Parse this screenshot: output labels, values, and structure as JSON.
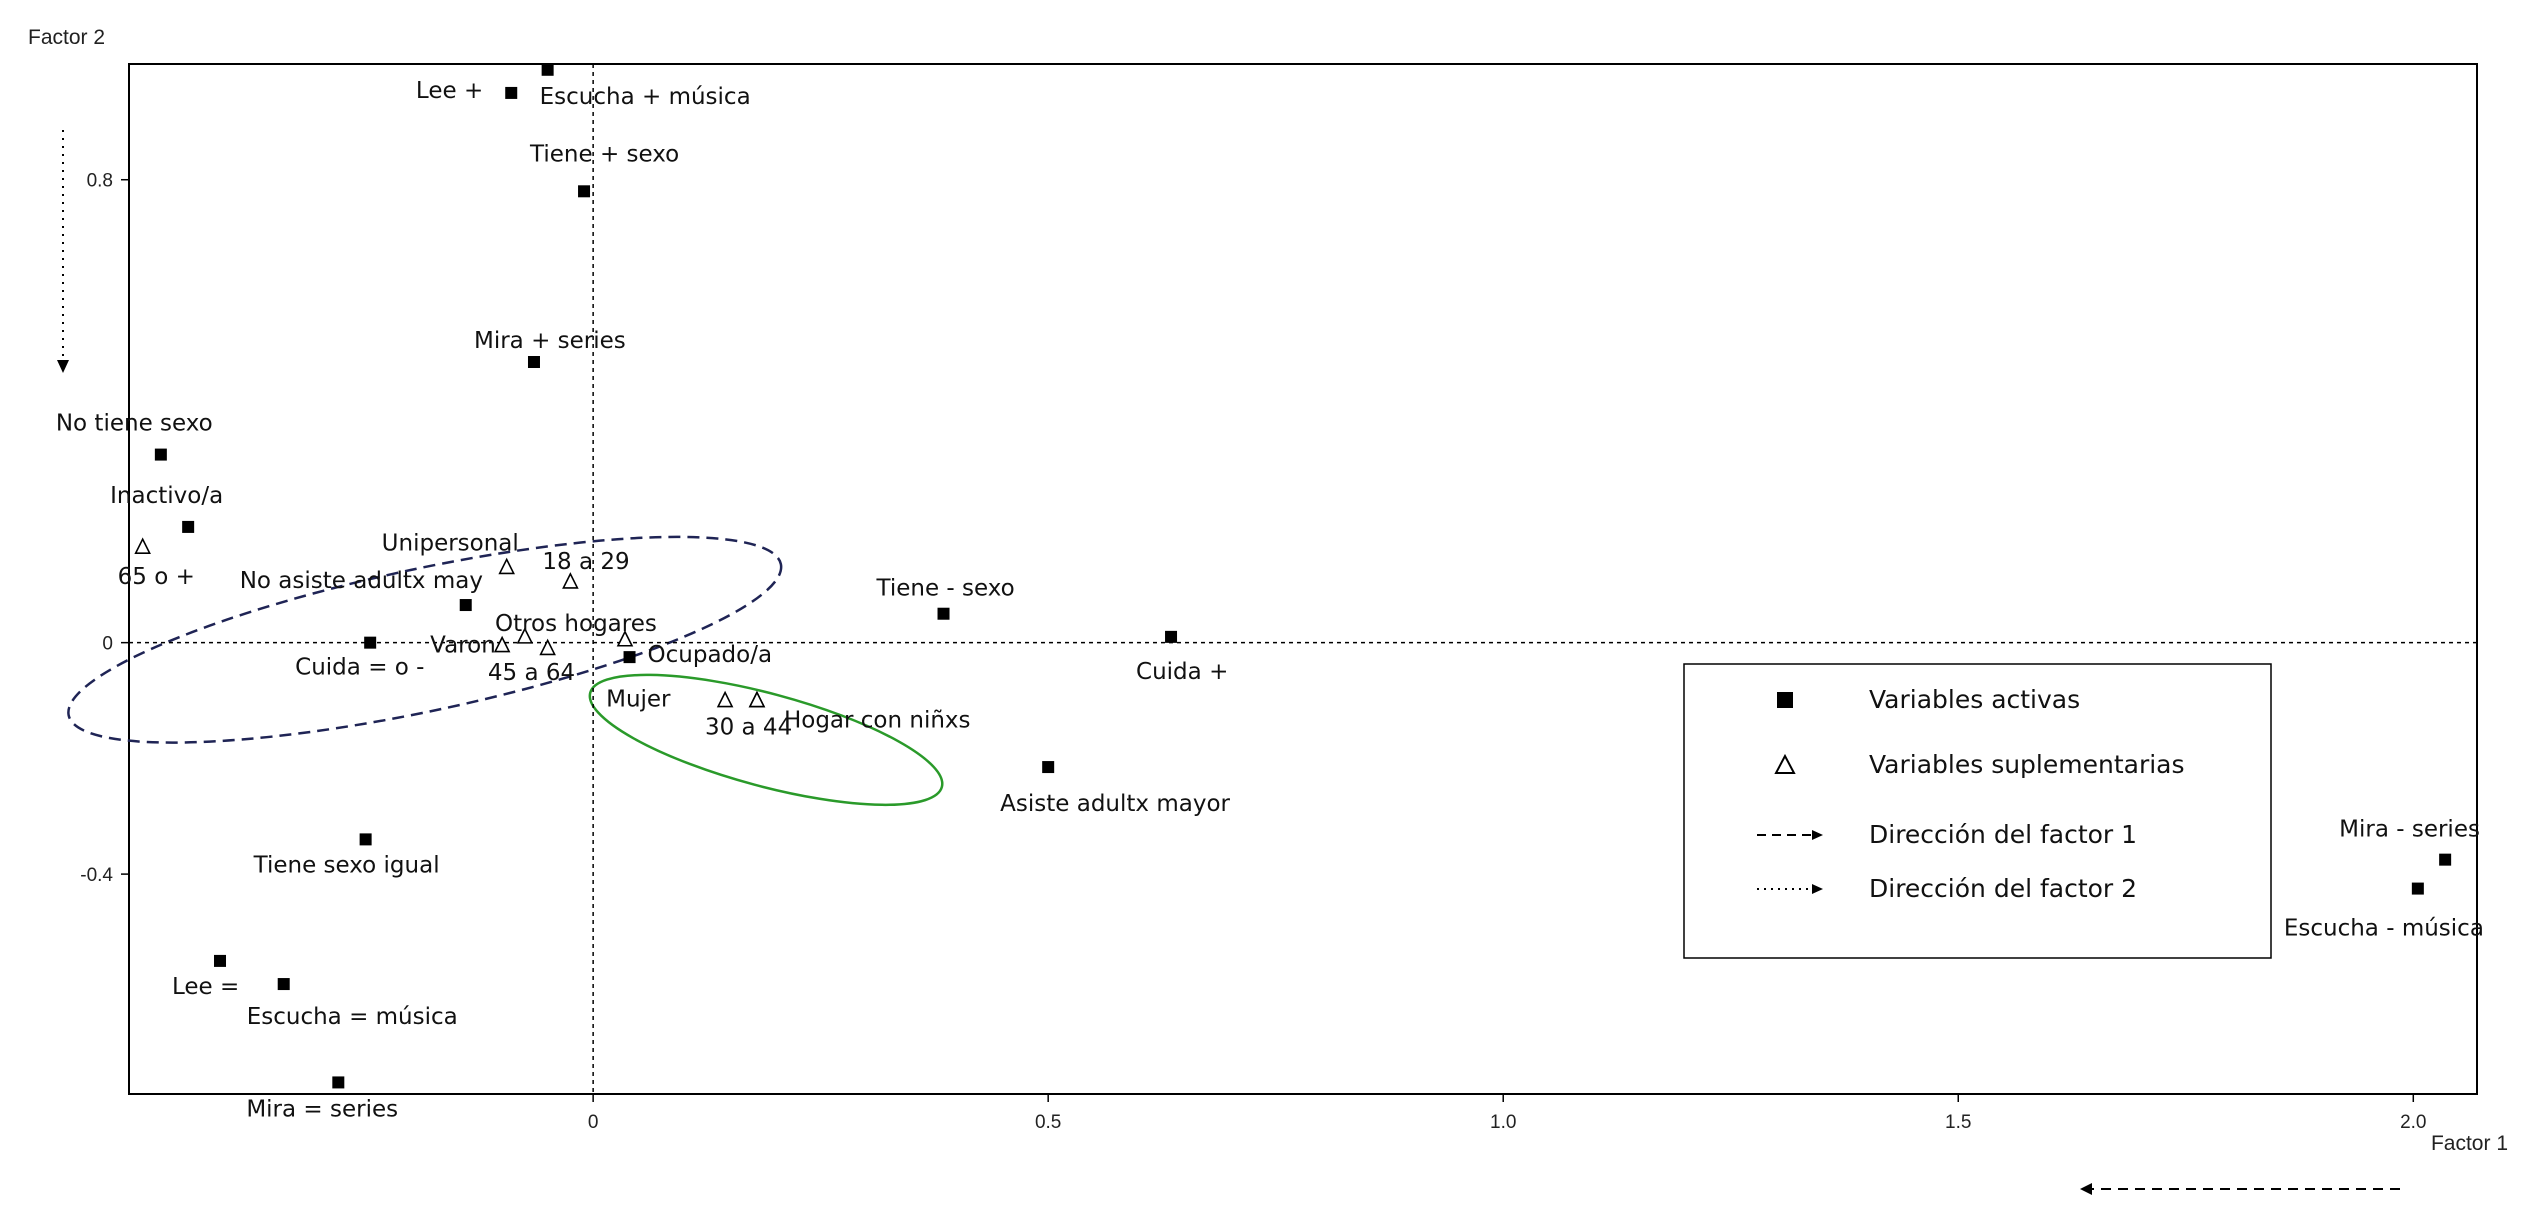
{
  "chart_data": {
    "type": "scatter",
    "title": "",
    "xlabel": "Factor 1",
    "ylabel": "Factor 2",
    "xlim": [
      -0.51,
      2.07
    ],
    "ylim": [
      -0.78,
      1.0
    ],
    "x_ticks": [
      {
        "value": 0,
        "label": "0"
      },
      {
        "value": 0.5,
        "label": "0.5"
      },
      {
        "value": 1.0,
        "label": "1.0"
      },
      {
        "value": 1.5,
        "label": "1.5"
      },
      {
        "value": 2.0,
        "label": "2.0"
      }
    ],
    "y_ticks": [
      {
        "value": 0.8,
        "label": "0.8"
      },
      {
        "value": 0,
        "label": "0"
      },
      {
        "value": -0.4,
        "label": "-0.4"
      }
    ],
    "reference_lines": {
      "x": 0,
      "y": 0,
      "style": "dashed"
    },
    "series": [
      {
        "name": "Variables activas",
        "marker": "filled-square",
        "points": [
          {
            "label": "Lee +",
            "x": -0.09,
            "y": 0.95
          },
          {
            "label": "Escucha + música",
            "x": -0.05,
            "y": 0.99
          },
          {
            "label": "Tiene + sexo",
            "x": -0.01,
            "y": 0.78
          },
          {
            "label": "Mira + series",
            "x": -0.065,
            "y": 0.485
          },
          {
            "label": "No tiene sexo",
            "x": -0.475,
            "y": 0.325
          },
          {
            "label": "Inactivo/a",
            "x": -0.445,
            "y": 0.2
          },
          {
            "label": "No asiste adultx may",
            "x": -0.14,
            "y": 0.065
          },
          {
            "label": "Cuida = o -",
            "x": -0.245,
            "y": 0.0
          },
          {
            "label": "Ocupado/a",
            "x": 0.04,
            "y": -0.025
          },
          {
            "label": "Tiene - sexo",
            "x": 0.385,
            "y": 0.05
          },
          {
            "label": "Cuida +",
            "x": 0.635,
            "y": 0.01
          },
          {
            "label": "Asiste adultx mayor",
            "x": 0.5,
            "y": -0.215
          },
          {
            "label": "Tiene sexo igual",
            "x": -0.25,
            "y": -0.34
          },
          {
            "label": "Lee =",
            "x": -0.41,
            "y": -0.55
          },
          {
            "label": "Escucha = música",
            "x": -0.34,
            "y": -0.59
          },
          {
            "label": "Mira = series",
            "x": -0.28,
            "y": -0.76
          },
          {
            "label": "Mira - series",
            "x": 2.035,
            "y": -0.375
          },
          {
            "label": "Escucha - música",
            "x": 2.005,
            "y": -0.425
          }
        ]
      },
      {
        "name": "Variables suplementarias",
        "marker": "open-triangle",
        "points": [
          {
            "label": "65 o +",
            "x": -0.495,
            "y": 0.165
          },
          {
            "label": "Unipersonal",
            "x": -0.095,
            "y": 0.13
          },
          {
            "label": "18 a 29",
            "x": -0.025,
            "y": 0.105
          },
          {
            "label": "Otros hogares",
            "x": 0.035,
            "y": 0.005
          },
          {
            "label": "Varon",
            "x": -0.1,
            "y": -0.005
          },
          {
            "label": "45 a 64",
            "x": -0.075,
            "y": 0.01
          },
          {
            "label": "",
            "x": -0.05,
            "y": -0.01
          },
          {
            "label": "Mujer",
            "x": 0.145,
            "y": -0.1
          },
          {
            "label": "30 a 44",
            "x": 0.18,
            "y": -0.1
          },
          {
            "label": "Hogar con niñxs",
            "x": 0.18,
            "y": -0.1
          }
        ]
      }
    ],
    "highlight_ellipses": [
      {
        "color": "#1f2455",
        "style": "dashed",
        "cx": -0.185,
        "cy": 0.005,
        "rx": 0.4,
        "ry": 0.123,
        "rotation_deg": -12
      },
      {
        "color": "#2a9a2a",
        "style": "solid",
        "cx": 0.19,
        "cy": -0.168,
        "rx": 0.2,
        "ry": 0.08,
        "rotation_deg": 15
      }
    ],
    "direction_arrows": [
      {
        "factor": 2,
        "style": "dotted",
        "direction": "down"
      },
      {
        "factor": 1,
        "style": "dashed",
        "direction": "left"
      }
    ],
    "legend": {
      "placement": "right",
      "items": [
        {
          "label": "Variables activas",
          "symbol": "filled-square"
        },
        {
          "label": "Variables suplementarias",
          "symbol": "open-triangle"
        },
        {
          "label": "Dirección del factor 1",
          "symbol": "dashed-arrow"
        },
        {
          "label": "Dirección del factor 2",
          "symbol": "dotted-arrow"
        }
      ]
    }
  }
}
